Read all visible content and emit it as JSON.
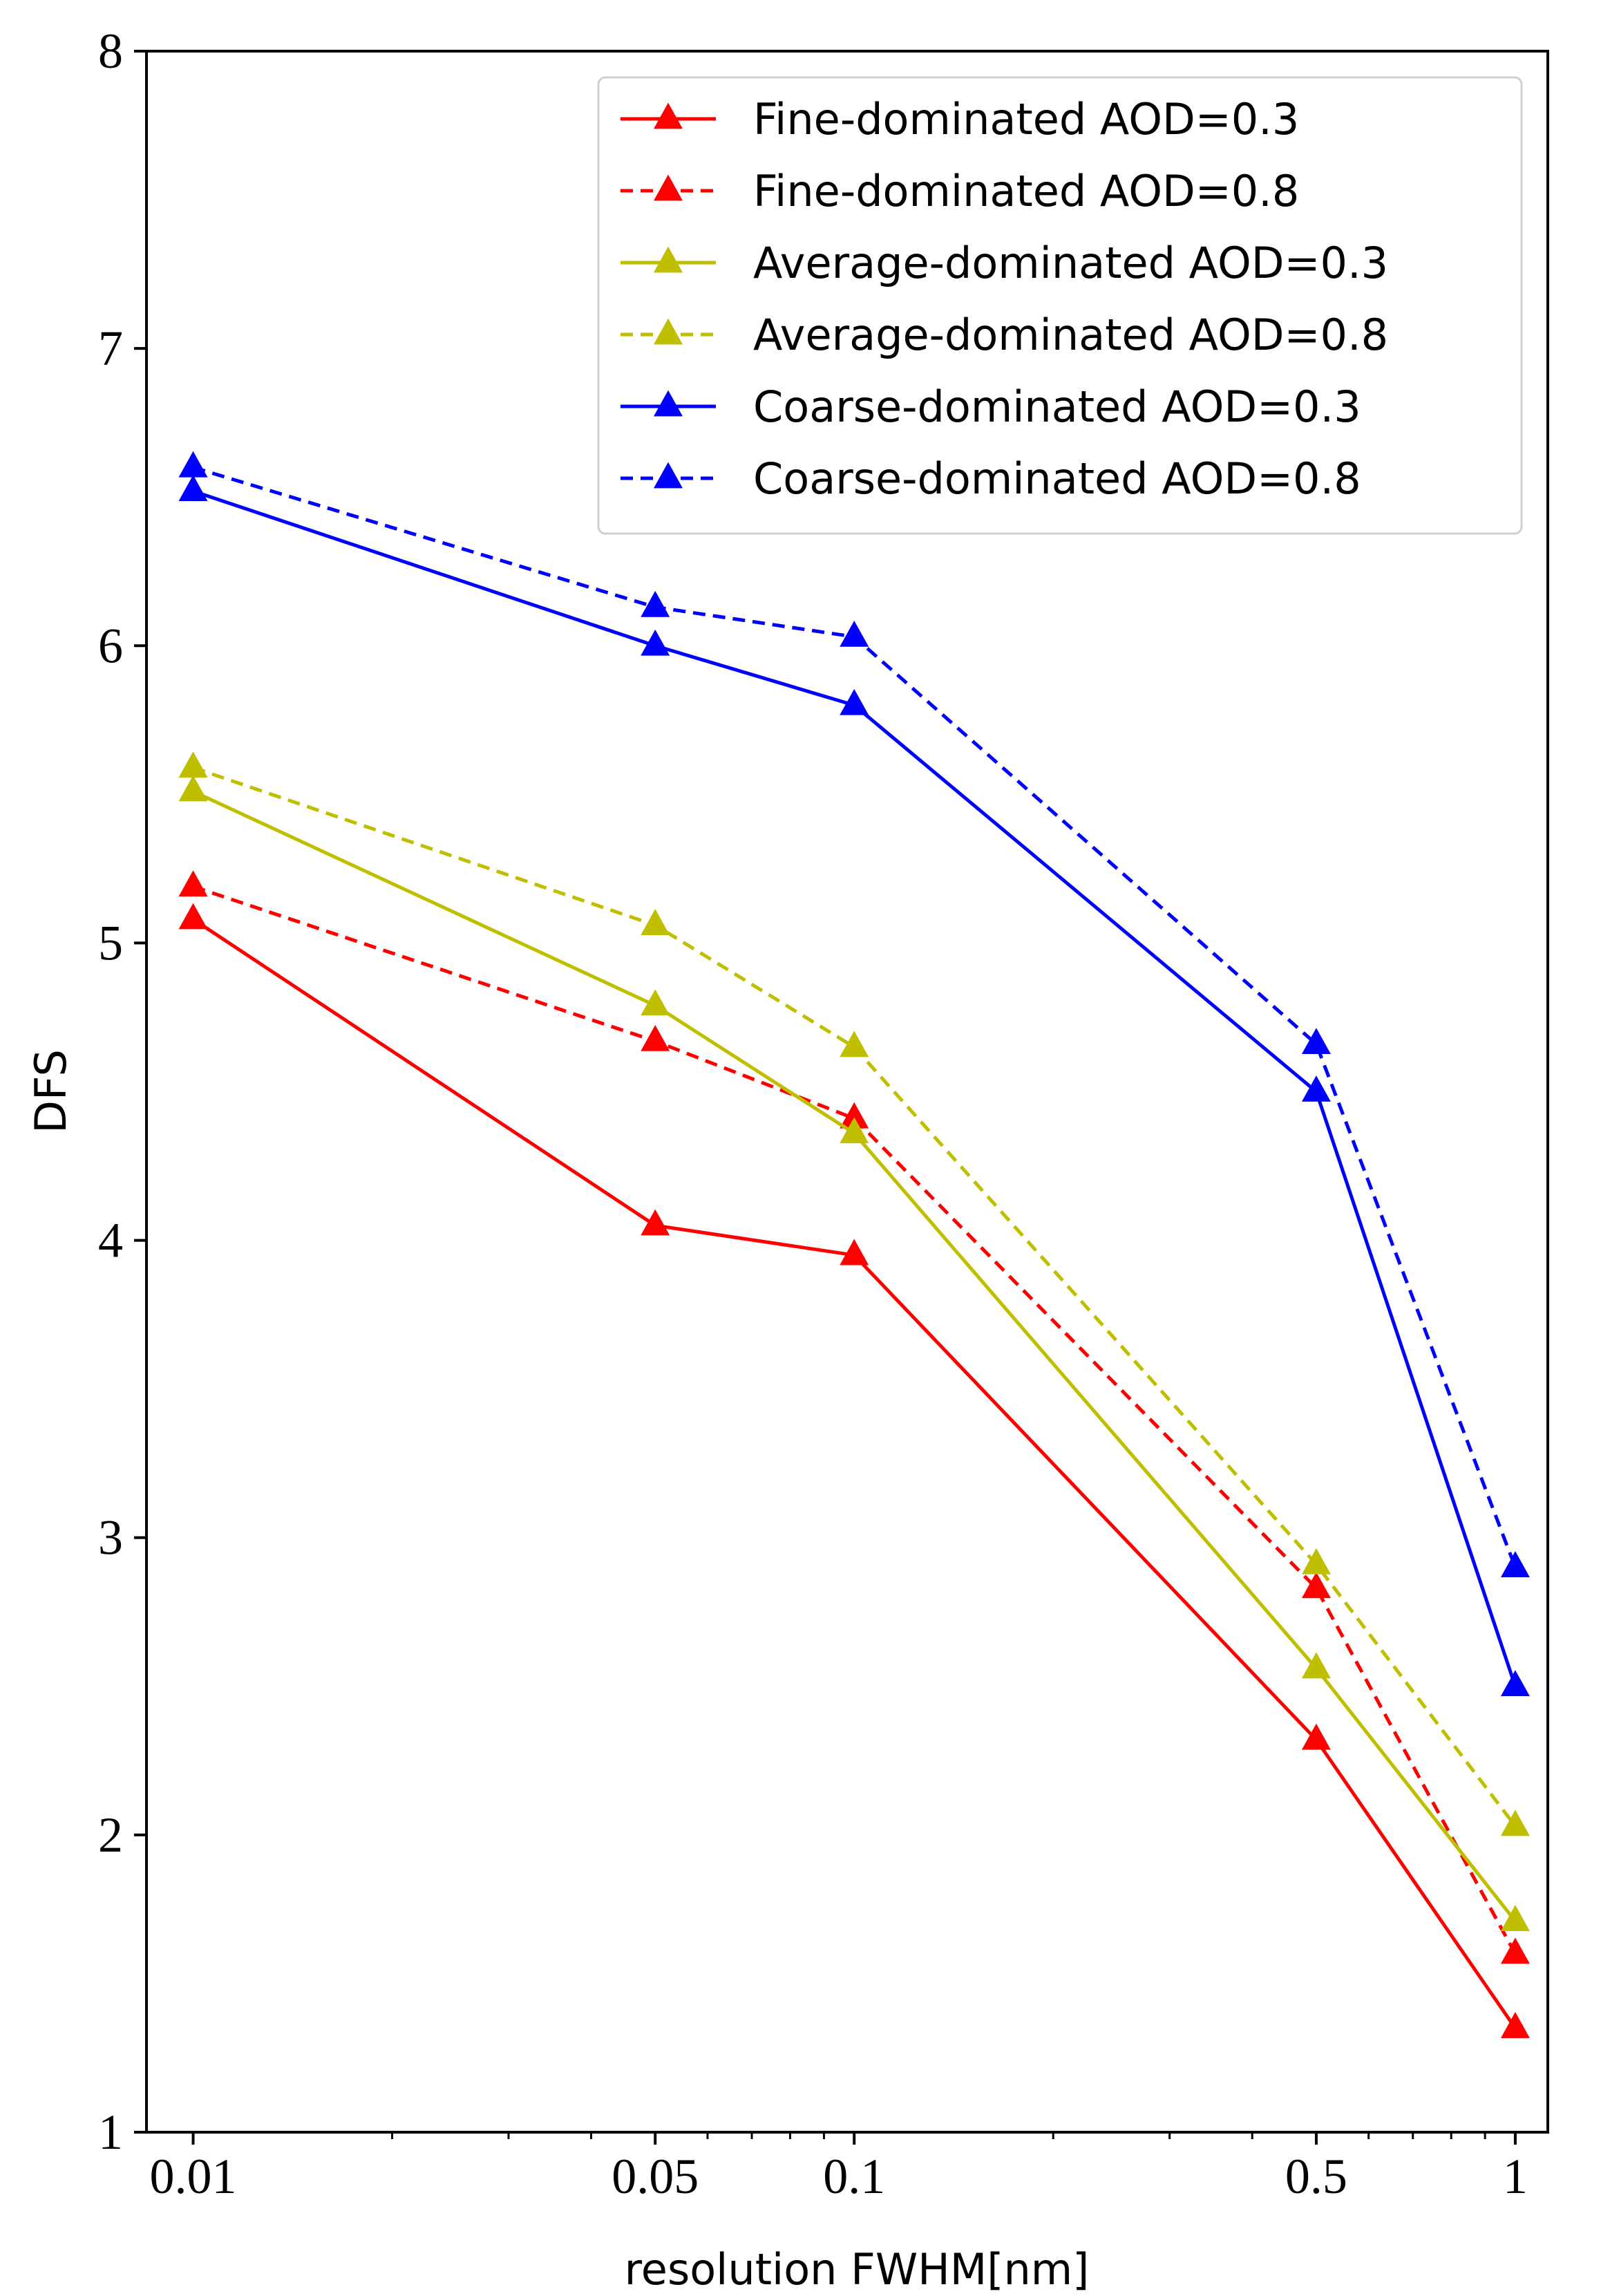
{
  "chart_data": {
    "type": "line",
    "xscale": "log",
    "x": [
      0.01,
      0.05,
      0.1,
      0.5,
      1
    ],
    "xticks": [
      "0.01",
      "0.05",
      "0.1",
      "0.5",
      "1"
    ],
    "yticks": [
      "1",
      "2",
      "3",
      "4",
      "5",
      "6",
      "7",
      "8"
    ],
    "xlim": [
      0.0085,
      1.12
    ],
    "ylim": [
      1,
      8
    ],
    "xlabel": "resolution FWHM[nm]",
    "ylabel": "DFS",
    "legend_position": "top-right",
    "grid": false,
    "series": [
      {
        "name": "Fine-dominated AOD=0.3",
        "color": "#ff0000",
        "dash": false,
        "values": [
          5.08,
          4.05,
          3.95,
          2.32,
          1.35
        ]
      },
      {
        "name": "Fine-dominated AOD=0.8",
        "color": "#ff0000",
        "dash": true,
        "values": [
          5.19,
          4.67,
          4.41,
          2.83,
          1.6
        ]
      },
      {
        "name": "Average-dominated AOD=0.3",
        "color": "#bfbf00",
        "dash": false,
        "values": [
          5.51,
          4.79,
          4.36,
          2.56,
          1.71
        ]
      },
      {
        "name": "Average-dominated AOD=0.8",
        "color": "#bfbf00",
        "dash": true,
        "values": [
          5.59,
          5.06,
          4.65,
          2.91,
          2.03
        ]
      },
      {
        "name": "Coarse-dominated AOD=0.3",
        "color": "#0000ff",
        "dash": false,
        "values": [
          6.52,
          6.0,
          5.8,
          4.5,
          2.5
        ]
      },
      {
        "name": "Coarse-dominated AOD=0.8",
        "color": "#0000ff",
        "dash": true,
        "values": [
          6.6,
          6.13,
          6.03,
          4.66,
          2.9
        ]
      }
    ]
  }
}
